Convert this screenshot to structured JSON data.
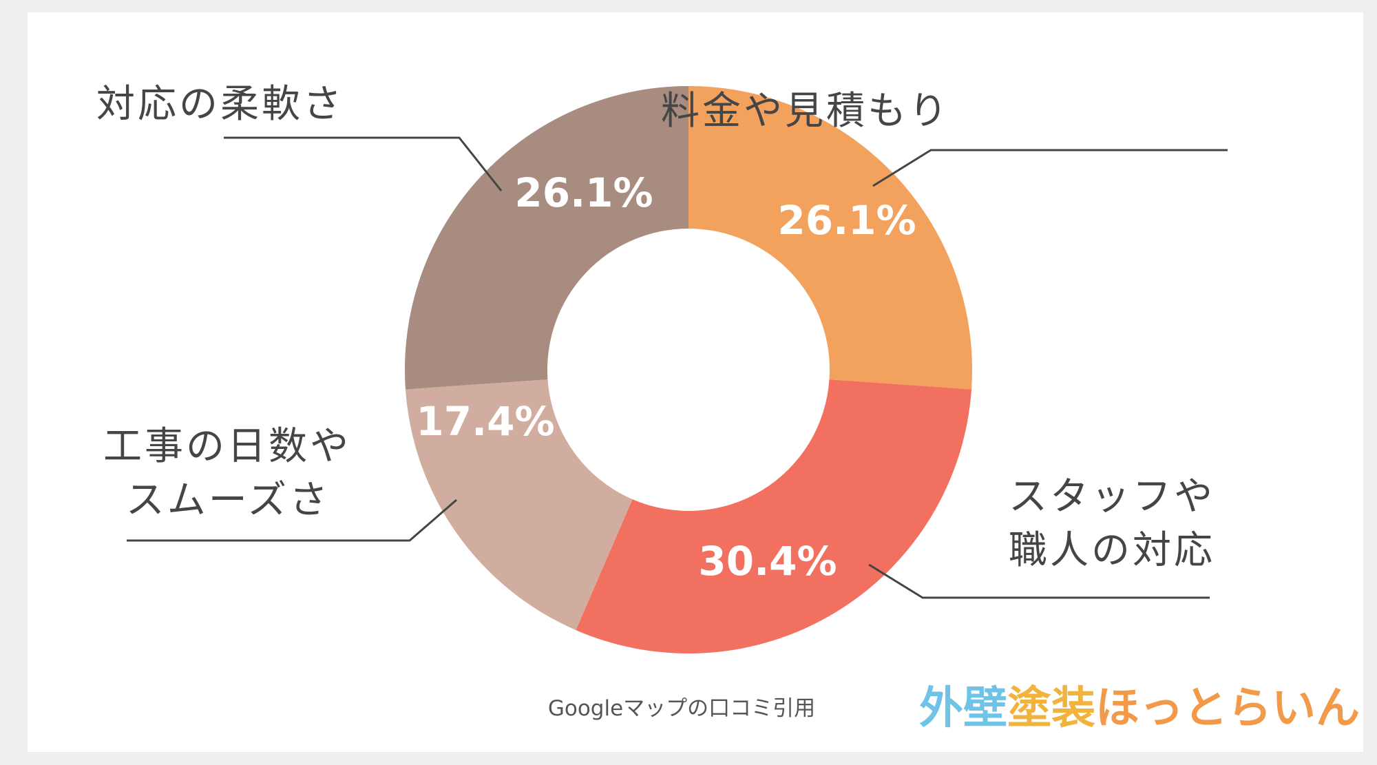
{
  "chart_data": {
    "type": "pie",
    "donut": true,
    "title": "",
    "categories": [
      "料金や見積もり",
      "スタッフや職人の対応",
      "工事の日数やスムーズさ",
      "対応の柔軟さ"
    ],
    "label_lines": [
      [
        "料金や見積もり"
      ],
      [
        "スタッフや",
        "職人の対応"
      ],
      [
        "工事の日数や",
        "スムーズさ"
      ],
      [
        "対応の柔軟さ"
      ]
    ],
    "values": [
      26.1,
      30.4,
      17.4,
      26.1
    ],
    "value_labels": [
      "26.1%",
      "30.4%",
      "17.4%",
      "26.1%"
    ],
    "colors": [
      "#f3a25e",
      "#f27060",
      "#d0ad9e",
      "#a88c80"
    ],
    "legend": "none"
  },
  "source_note": "Googleマップの口コミ引用",
  "logo": {
    "parts": [
      {
        "text": "外壁",
        "color": "#6ec3e6"
      },
      {
        "text": "塗装",
        "color": "#f2b33d"
      },
      {
        "text": "ほっとらいん",
        "color": "#f29a4a"
      }
    ]
  }
}
